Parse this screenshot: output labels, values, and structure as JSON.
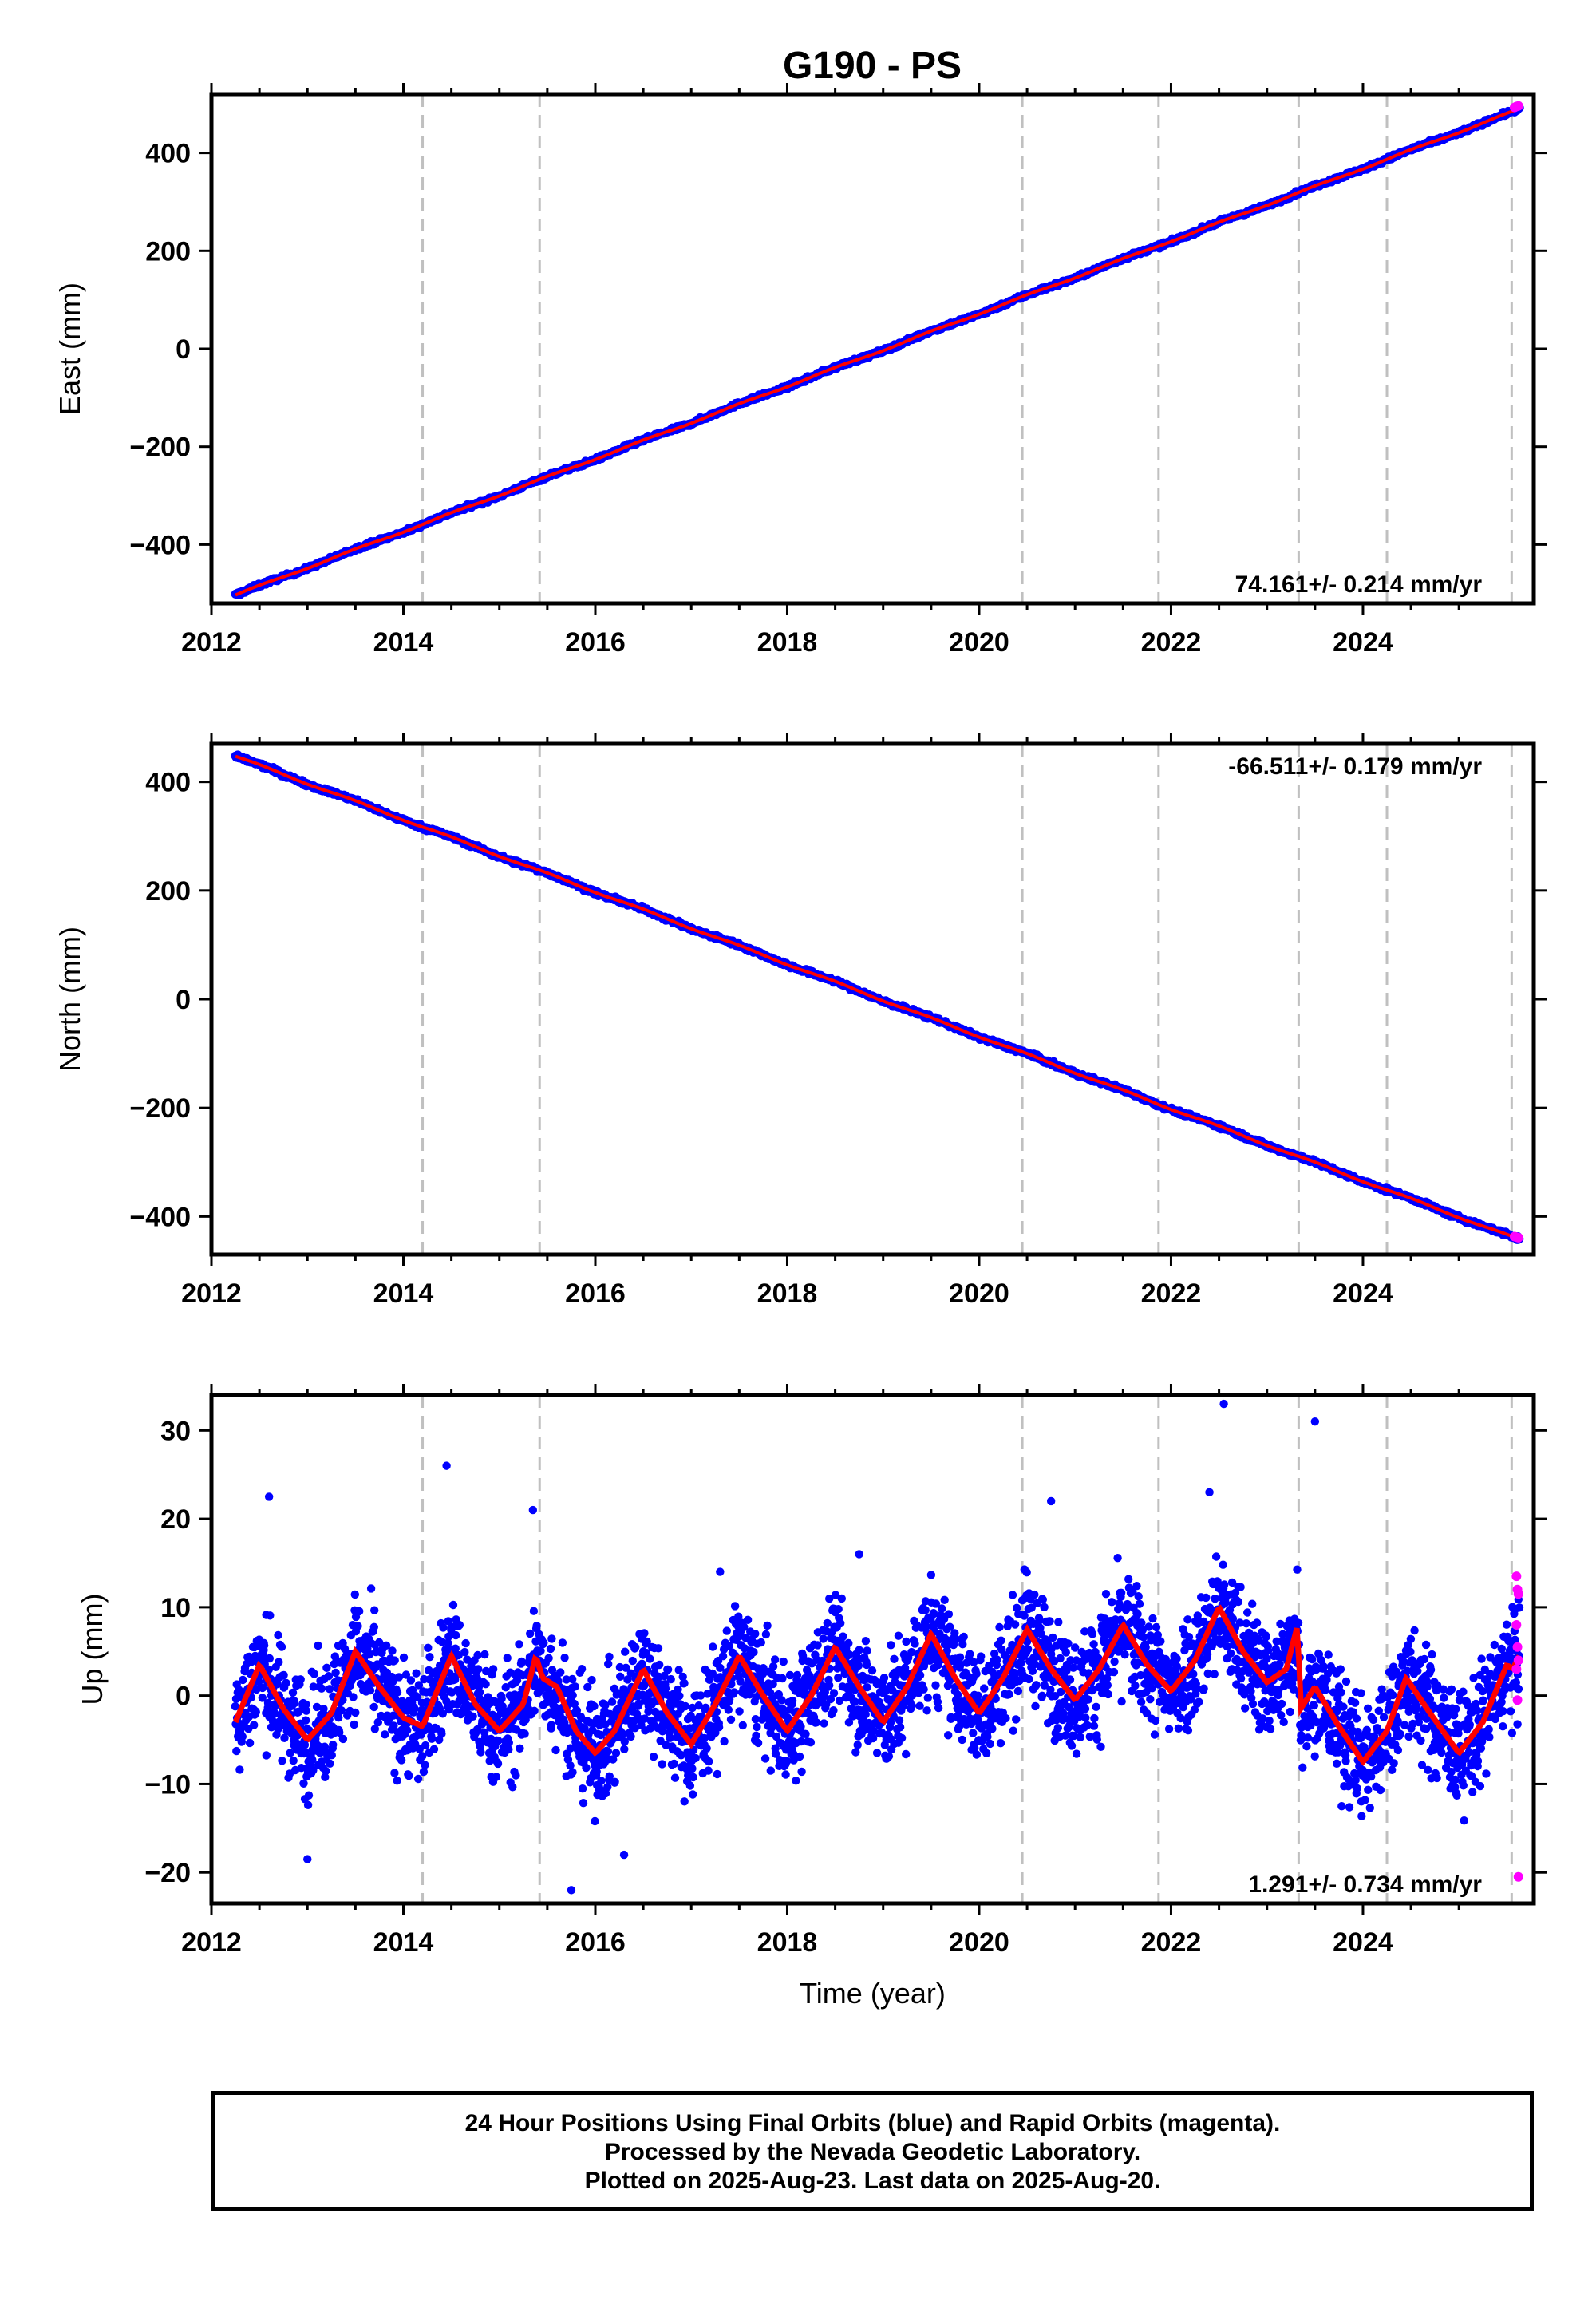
{
  "page_title": "G190 - PS",
  "colors": {
    "final_orbits": "#0000ff",
    "rapid_orbits": "#ff00ff",
    "model_fit": "#ff0000",
    "event_lines": "#c0c0c0",
    "frame": "#000000"
  },
  "chart_data": [
    {
      "type": "scatter",
      "name": "east",
      "title": "G190 - PS",
      "xlabel": "",
      "ylabel": "East (mm)",
      "xlim": [
        2012.0,
        2025.78
      ],
      "ylim": [
        -520,
        520
      ],
      "x_ticks": [
        2012,
        2014,
        2016,
        2018,
        2020,
        2022,
        2024
      ],
      "x_tick_labels": [
        "2012",
        "2014",
        "2016",
        "2018",
        "2020",
        "2022",
        "2024"
      ],
      "y_ticks": [
        -400,
        -200,
        0,
        200,
        400
      ],
      "y_tick_labels": [
        "−400",
        "−200",
        "0",
        "200",
        "400"
      ],
      "event_lines": [
        2014.2,
        2015.42,
        2020.45,
        2021.87,
        2023.33,
        2024.25,
        2025.55
      ],
      "data_range": [
        2012.25,
        2025.63
      ],
      "trend": {
        "start": -503,
        "rate": 74.161,
        "t0": 2012.25
      },
      "seasonal_amplitude": 1.5,
      "noise": 2.5,
      "rate_text": "74.161+/- 0.214 mm/yr",
      "rate_position": "bottom-right",
      "rapid_points": [
        [
          2025.58,
          493
        ],
        [
          2025.6,
          495
        ],
        [
          2025.62,
          496
        ]
      ]
    },
    {
      "type": "scatter",
      "name": "north",
      "title": "",
      "xlabel": "",
      "ylabel": "North (mm)",
      "xlim": [
        2012.0,
        2025.78
      ],
      "ylim": [
        -470,
        470
      ],
      "x_ticks": [
        2012,
        2014,
        2016,
        2018,
        2020,
        2022,
        2024
      ],
      "x_tick_labels": [
        "2012",
        "2014",
        "2016",
        "2018",
        "2020",
        "2022",
        "2024"
      ],
      "y_ticks": [
        -400,
        -200,
        0,
        200,
        400
      ],
      "y_tick_labels": [
        "−400",
        "−200",
        "0",
        "200",
        "400"
      ],
      "event_lines": [
        2014.2,
        2015.42,
        2020.45,
        2021.87,
        2023.33,
        2024.25,
        2025.55
      ],
      "data_range": [
        2012.25,
        2025.63
      ],
      "trend": {
        "start": 447,
        "rate": -66.511,
        "t0": 2012.25
      },
      "seasonal_amplitude": 1.5,
      "noise": 2.5,
      "rate_text": "-66.511+/- 0.179 mm/yr",
      "rate_position": "top-right",
      "rapid_points": [
        [
          2025.58,
          -437
        ],
        [
          2025.6,
          -438
        ],
        [
          2025.62,
          -439
        ]
      ]
    },
    {
      "type": "scatter",
      "name": "up",
      "title": "",
      "xlabel": "Time (year)",
      "ylabel": "Up (mm)",
      "xlim": [
        2012.0,
        2025.78
      ],
      "ylim": [
        -23.5,
        34
      ],
      "x_ticks": [
        2012,
        2014,
        2016,
        2018,
        2020,
        2022,
        2024
      ],
      "x_tick_labels": [
        "2012",
        "2014",
        "2016",
        "2018",
        "2020",
        "2022",
        "2024"
      ],
      "y_ticks": [
        -20,
        -10,
        0,
        10,
        20,
        30
      ],
      "y_tick_labels": [
        "−20",
        "−10",
        "0",
        "10",
        "20",
        "30"
      ],
      "event_lines": [
        2014.2,
        2015.42,
        2020.45,
        2021.87,
        2023.33,
        2024.25,
        2025.55
      ],
      "data_range": [
        2012.25,
        2025.63
      ],
      "trend": {
        "start": -1.5,
        "rate": 1.291,
        "t0": 2012.25
      },
      "seasonal_amplitude": 4.5,
      "noise": 4.5,
      "rate_text": "1.291+/- 0.734 mm/yr",
      "rate_position": "bottom-right",
      "model_fit": [
        [
          2012.25,
          -3
        ],
        [
          2012.5,
          3.5
        ],
        [
          2012.75,
          -1.5
        ],
        [
          2013.0,
          -5
        ],
        [
          2013.25,
          -2
        ],
        [
          2013.5,
          5
        ],
        [
          2013.75,
          1
        ],
        [
          2014.0,
          -2.5
        ],
        [
          2014.2,
          -3.5
        ],
        [
          2014.5,
          4.5
        ],
        [
          2014.75,
          -1
        ],
        [
          2015.0,
          -4
        ],
        [
          2015.25,
          -1
        ],
        [
          2015.38,
          4.5
        ],
        [
          2015.45,
          2
        ],
        [
          2015.6,
          1
        ],
        [
          2015.8,
          -4
        ],
        [
          2016.0,
          -6.5
        ],
        [
          2016.2,
          -4
        ],
        [
          2016.5,
          3
        ],
        [
          2016.75,
          -2
        ],
        [
          2017.0,
          -5.5
        ],
        [
          2017.25,
          -1
        ],
        [
          2017.5,
          4.5
        ],
        [
          2017.75,
          0
        ],
        [
          2018.0,
          -4
        ],
        [
          2018.25,
          0
        ],
        [
          2018.5,
          5.5
        ],
        [
          2018.75,
          1
        ],
        [
          2019.0,
          -3
        ],
        [
          2019.25,
          1
        ],
        [
          2019.5,
          7
        ],
        [
          2019.75,
          2
        ],
        [
          2020.0,
          -2
        ],
        [
          2020.25,
          2
        ],
        [
          2020.5,
          7.5
        ],
        [
          2020.75,
          3
        ],
        [
          2021.0,
          -0.5
        ],
        [
          2021.25,
          3
        ],
        [
          2021.5,
          8
        ],
        [
          2021.75,
          3.5
        ],
        [
          2022.0,
          0.5
        ],
        [
          2022.25,
          4
        ],
        [
          2022.5,
          10
        ],
        [
          2022.75,
          5
        ],
        [
          2023.0,
          1.5
        ],
        [
          2023.2,
          3
        ],
        [
          2023.32,
          8
        ],
        [
          2023.35,
          -1.5
        ],
        [
          2023.5,
          1
        ],
        [
          2023.75,
          -3.5
        ],
        [
          2024.0,
          -7.5
        ],
        [
          2024.25,
          -4
        ],
        [
          2024.45,
          2
        ],
        [
          2024.7,
          -2
        ],
        [
          2025.0,
          -6.5
        ],
        [
          2025.25,
          -3
        ],
        [
          2025.5,
          3.5
        ],
        [
          2025.56,
          3
        ],
        [
          2025.63,
          4.5
        ]
      ],
      "outliers": [
        [
          2012.6,
          22.5
        ],
        [
          2014.45,
          26
        ],
        [
          2015.35,
          21
        ],
        [
          2015.75,
          -22
        ],
        [
          2017.3,
          14
        ],
        [
          2018.75,
          16
        ],
        [
          2020.75,
          22
        ],
        [
          2022.55,
          33
        ],
        [
          2023.5,
          31
        ],
        [
          2016.3,
          -18
        ],
        [
          2013.0,
          -18.5
        ],
        [
          2022.4,
          23
        ]
      ],
      "rapid_points": [
        [
          2025.6,
          13.5
        ],
        [
          2025.61,
          12
        ],
        [
          2025.62,
          11.5
        ],
        [
          2025.6,
          8
        ],
        [
          2025.61,
          5.5
        ],
        [
          2025.62,
          4
        ],
        [
          2025.6,
          3
        ],
        [
          2025.61,
          -0.5
        ],
        [
          2025.62,
          -20.5
        ]
      ]
    }
  ],
  "footer": {
    "line1": "24 Hour Positions Using Final Orbits (blue) and Rapid Orbits (magenta).",
    "line2": "Processed by the Nevada Geodetic Laboratory.",
    "line3": "Plotted on 2025-Aug-23. Last data on 2025-Aug-20."
  }
}
